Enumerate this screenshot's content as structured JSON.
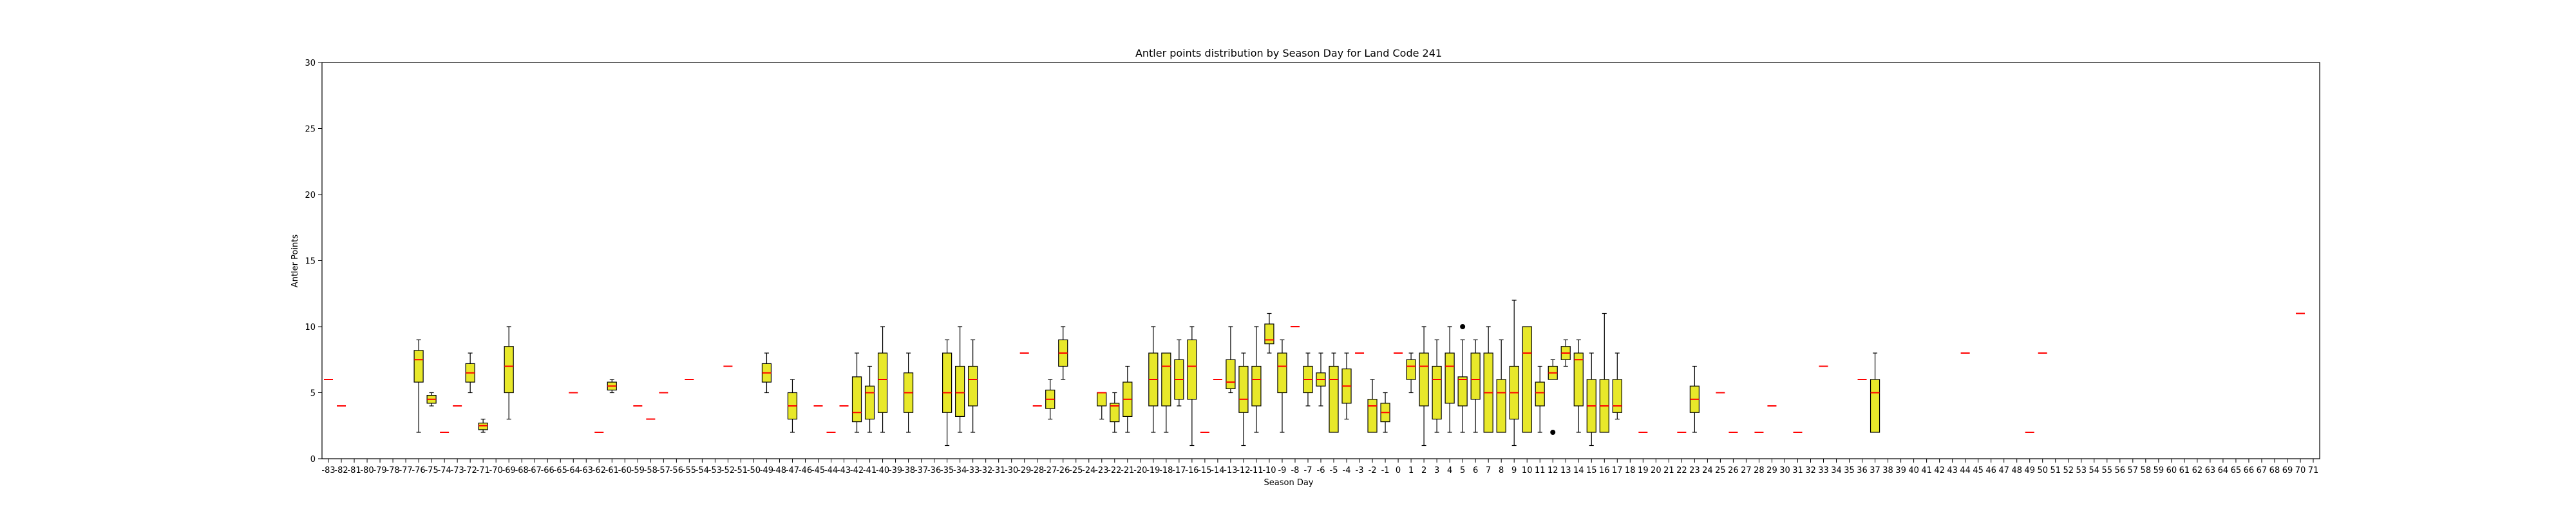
{
  "chart_data": {
    "type": "box",
    "title": "Antler points distribution by Season Day for Land Code 241",
    "xlabel": "Season Day",
    "ylabel": "Antler Points",
    "ylim": [
      0,
      30
    ],
    "yticks": [
      0,
      5,
      10,
      15,
      20,
      25,
      30
    ],
    "categories": [
      -83,
      -82,
      -81,
      -80,
      -79,
      -78,
      -77,
      -76,
      -75,
      -74,
      -73,
      -72,
      -71,
      -70,
      -69,
      -68,
      -67,
      -66,
      -65,
      -64,
      -63,
      -62,
      -61,
      -60,
      -59,
      -58,
      -57,
      -56,
      -55,
      -54,
      -53,
      -52,
      -51,
      -50,
      -49,
      -48,
      -47,
      -46,
      -45,
      -44,
      -43,
      -42,
      -41,
      -40,
      -39,
      -38,
      -37,
      -36,
      -35,
      -34,
      -33,
      -32,
      -31,
      -30,
      -29,
      -28,
      -27,
      -26,
      -25,
      -24,
      -23,
      -22,
      -21,
      -20,
      -19,
      -18,
      -17,
      -16,
      -15,
      -14,
      -13,
      -12,
      -11,
      -10,
      -9,
      -8,
      -7,
      -6,
      -5,
      -4,
      -3,
      -2,
      -1,
      0,
      1,
      2,
      3,
      4,
      5,
      6,
      7,
      8,
      9,
      10,
      11,
      12,
      13,
      14,
      15,
      16,
      17,
      18,
      19,
      20,
      21,
      22,
      23,
      24,
      25,
      26,
      27,
      28,
      29,
      30,
      31,
      32,
      33,
      34,
      35,
      36,
      37,
      38,
      39,
      40,
      41,
      42,
      43,
      44,
      45,
      46,
      47,
      48,
      49,
      50,
      51,
      52,
      53,
      54,
      55,
      56,
      57,
      58,
      59,
      60,
      61,
      62,
      63,
      64,
      65,
      66,
      67,
      68,
      69,
      70,
      71
    ],
    "box_fill": "#e8e82a",
    "median_color": "#ff0000",
    "boxes": [
      {
        "x": -83,
        "min": 6,
        "q1": 6,
        "median": 6,
        "q3": 6,
        "max": 6
      },
      {
        "x": -82,
        "min": 4,
        "q1": 4,
        "median": 4,
        "q3": 4,
        "max": 4
      },
      {
        "x": -76,
        "min": 2,
        "q1": 5.8,
        "median": 7.5,
        "q3": 8.2,
        "max": 9
      },
      {
        "x": -75,
        "min": 4,
        "q1": 4.2,
        "median": 4.5,
        "q3": 4.8,
        "max": 5
      },
      {
        "x": -74,
        "min": 2,
        "q1": 2,
        "median": 2,
        "q3": 2,
        "max": 2
      },
      {
        "x": -73,
        "min": 4,
        "q1": 4,
        "median": 4,
        "q3": 4,
        "max": 4
      },
      {
        "x": -72,
        "min": 5,
        "q1": 5.8,
        "median": 6.5,
        "q3": 7.2,
        "max": 8
      },
      {
        "x": -71,
        "min": 2,
        "q1": 2.2,
        "median": 2.5,
        "q3": 2.7,
        "max": 3
      },
      {
        "x": -69,
        "min": 3,
        "q1": 5,
        "median": 7,
        "q3": 8.5,
        "max": 10
      },
      {
        "x": -64,
        "min": 5,
        "q1": 5,
        "median": 5,
        "q3": 5,
        "max": 5
      },
      {
        "x": -62,
        "min": 2,
        "q1": 2,
        "median": 2,
        "q3": 2,
        "max": 2
      },
      {
        "x": -61,
        "min": 5,
        "q1": 5.2,
        "median": 5.5,
        "q3": 5.8,
        "max": 6
      },
      {
        "x": -59,
        "min": 4,
        "q1": 4,
        "median": 4,
        "q3": 4,
        "max": 4
      },
      {
        "x": -58,
        "min": 3,
        "q1": 3,
        "median": 3,
        "q3": 3,
        "max": 3
      },
      {
        "x": -57,
        "min": 5,
        "q1": 5,
        "median": 5,
        "q3": 5,
        "max": 5
      },
      {
        "x": -55,
        "min": 6,
        "q1": 6,
        "median": 6,
        "q3": 6,
        "max": 6
      },
      {
        "x": -52,
        "min": 7,
        "q1": 7,
        "median": 7,
        "q3": 7,
        "max": 7
      },
      {
        "x": -49,
        "min": 5,
        "q1": 5.8,
        "median": 6.5,
        "q3": 7.2,
        "max": 8
      },
      {
        "x": -47,
        "min": 2,
        "q1": 3,
        "median": 4,
        "q3": 5,
        "max": 6
      },
      {
        "x": -45,
        "min": 4,
        "q1": 4,
        "median": 4,
        "q3": 4,
        "max": 4
      },
      {
        "x": -44,
        "min": 2,
        "q1": 2,
        "median": 2,
        "q3": 2,
        "max": 2
      },
      {
        "x": -43,
        "min": 4,
        "q1": 4,
        "median": 4,
        "q3": 4,
        "max": 4
      },
      {
        "x": -42,
        "min": 2,
        "q1": 2.8,
        "median": 3.5,
        "q3": 6.2,
        "max": 8
      },
      {
        "x": -41,
        "min": 2,
        "q1": 3,
        "median": 5,
        "q3": 5.5,
        "max": 7
      },
      {
        "x": -40,
        "min": 2,
        "q1": 3.5,
        "median": 6,
        "q3": 8,
        "max": 10
      },
      {
        "x": -38,
        "min": 2,
        "q1": 3.5,
        "median": 5,
        "q3": 6.5,
        "max": 8
      },
      {
        "x": -35,
        "min": 1,
        "q1": 3.5,
        "median": 5,
        "q3": 8,
        "max": 9
      },
      {
        "x": -34,
        "min": 2,
        "q1": 3.2,
        "median": 5,
        "q3": 7,
        "max": 10
      },
      {
        "x": -33,
        "min": 2,
        "q1": 4,
        "median": 6,
        "q3": 7,
        "max": 9
      },
      {
        "x": -29,
        "min": 8,
        "q1": 8,
        "median": 8,
        "q3": 8,
        "max": 8
      },
      {
        "x": -28,
        "min": 4,
        "q1": 4,
        "median": 4,
        "q3": 4,
        "max": 4
      },
      {
        "x": -27,
        "min": 3,
        "q1": 3.8,
        "median": 4.5,
        "q3": 5.2,
        "max": 6
      },
      {
        "x": -26,
        "min": 6,
        "q1": 7,
        "median": 8,
        "q3": 9,
        "max": 10
      },
      {
        "x": -23,
        "min": 3,
        "q1": 4,
        "median": 5,
        "q3": 5,
        "max": 5
      },
      {
        "x": -22,
        "min": 2,
        "q1": 2.8,
        "median": 4,
        "q3": 4.2,
        "max": 5
      },
      {
        "x": -21,
        "min": 2,
        "q1": 3.2,
        "median": 4.5,
        "q3": 5.8,
        "max": 7
      },
      {
        "x": -19,
        "min": 2,
        "q1": 4,
        "median": 6,
        "q3": 8,
        "max": 10
      },
      {
        "x": -18,
        "min": 2,
        "q1": 4,
        "median": 7,
        "q3": 8,
        "max": 8
      },
      {
        "x": -17,
        "min": 4,
        "q1": 4.5,
        "median": 6,
        "q3": 7.5,
        "max": 9
      },
      {
        "x": -16,
        "min": 1,
        "q1": 4.5,
        "median": 7,
        "q3": 9,
        "max": 10
      },
      {
        "x": -15,
        "min": 2,
        "q1": 2,
        "median": 2,
        "q3": 2,
        "max": 2
      },
      {
        "x": -14,
        "min": 6,
        "q1": 6,
        "median": 6,
        "q3": 6,
        "max": 6
      },
      {
        "x": -13,
        "min": 5,
        "q1": 5.3,
        "median": 5.8,
        "q3": 7.5,
        "max": 10
      },
      {
        "x": -12,
        "min": 1,
        "q1": 3.5,
        "median": 4.5,
        "q3": 7,
        "max": 8
      },
      {
        "x": -11,
        "min": 2,
        "q1": 4,
        "median": 6,
        "q3": 7,
        "max": 10
      },
      {
        "x": -10,
        "min": 8,
        "q1": 8.7,
        "median": 9,
        "q3": 10.2,
        "max": 11
      },
      {
        "x": -9,
        "min": 2,
        "q1": 5,
        "median": 7,
        "q3": 8,
        "max": 9
      },
      {
        "x": -8,
        "min": 10,
        "q1": 10,
        "median": 10,
        "q3": 10,
        "max": 10
      },
      {
        "x": -7,
        "min": 4,
        "q1": 5,
        "median": 6,
        "q3": 7,
        "max": 8
      },
      {
        "x": -6,
        "min": 4,
        "q1": 5.5,
        "median": 6,
        "q3": 6.5,
        "max": 8
      },
      {
        "x": -5,
        "min": 2,
        "q1": 2,
        "median": 6,
        "q3": 7,
        "max": 8
      },
      {
        "x": -4,
        "min": 3,
        "q1": 4.2,
        "median": 5.5,
        "q3": 6.8,
        "max": 8
      },
      {
        "x": -3,
        "min": 8,
        "q1": 8,
        "median": 8,
        "q3": 8,
        "max": 8
      },
      {
        "x": -2,
        "min": 2,
        "q1": 2,
        "median": 4,
        "q3": 4.5,
        "max": 6
      },
      {
        "x": -1,
        "min": 2,
        "q1": 2.8,
        "median": 3.5,
        "q3": 4.2,
        "max": 5
      },
      {
        "x": 0,
        "min": 8,
        "q1": 8,
        "median": 8,
        "q3": 8,
        "max": 8
      },
      {
        "x": 1,
        "min": 5,
        "q1": 6,
        "median": 7,
        "q3": 7.5,
        "max": 8
      },
      {
        "x": 2,
        "min": 1,
        "q1": 4,
        "median": 7,
        "q3": 8,
        "max": 10
      },
      {
        "x": 3,
        "min": 2,
        "q1": 3,
        "median": 6,
        "q3": 7,
        "max": 9
      },
      {
        "x": 4,
        "min": 2,
        "q1": 4.2,
        "median": 7,
        "q3": 8,
        "max": 10
      },
      {
        "x": 5,
        "min": 2,
        "q1": 4,
        "median": 6,
        "q3": 6.2,
        "max": 9,
        "outliers": [
          10
        ]
      },
      {
        "x": 6,
        "min": 2,
        "q1": 4.5,
        "median": 6,
        "q3": 8,
        "max": 9
      },
      {
        "x": 7,
        "min": 2,
        "q1": 2,
        "median": 5,
        "q3": 8,
        "max": 10
      },
      {
        "x": 8,
        "min": 2,
        "q1": 2,
        "median": 5,
        "q3": 6,
        "max": 9
      },
      {
        "x": 9,
        "min": 1,
        "q1": 3,
        "median": 5,
        "q3": 7,
        "max": 12
      },
      {
        "x": 10,
        "min": 2,
        "q1": 2,
        "median": 8,
        "q3": 10,
        "max": 10
      },
      {
        "x": 11,
        "min": 2,
        "q1": 4,
        "median": 5,
        "q3": 5.8,
        "max": 7
      },
      {
        "x": 12,
        "min": 6,
        "q1": 6,
        "median": 6.5,
        "q3": 7,
        "max": 7.5,
        "outliers": [
          2
        ]
      },
      {
        "x": 13,
        "min": 7,
        "q1": 7.5,
        "median": 8,
        "q3": 8.5,
        "max": 9
      },
      {
        "x": 14,
        "min": 2,
        "q1": 4,
        "median": 7.5,
        "q3": 8,
        "max": 9
      },
      {
        "x": 15,
        "min": 1,
        "q1": 2,
        "median": 4,
        "q3": 6,
        "max": 8
      },
      {
        "x": 16,
        "min": 2,
        "q1": 2,
        "median": 4,
        "q3": 6,
        "max": 11
      },
      {
        "x": 17,
        "min": 3,
        "q1": 3.5,
        "median": 4,
        "q3": 6,
        "max": 8
      },
      {
        "x": 19,
        "min": 2,
        "q1": 2,
        "median": 2,
        "q3": 2,
        "max": 2
      },
      {
        "x": 22,
        "min": 2,
        "q1": 2,
        "median": 2,
        "q3": 2,
        "max": 2
      },
      {
        "x": 23,
        "min": 2,
        "q1": 3.5,
        "median": 4.5,
        "q3": 5.5,
        "max": 7
      },
      {
        "x": 25,
        "min": 5,
        "q1": 5,
        "median": 5,
        "q3": 5,
        "max": 5
      },
      {
        "x": 26,
        "min": 2,
        "q1": 2,
        "median": 2,
        "q3": 2,
        "max": 2
      },
      {
        "x": 28,
        "min": 2,
        "q1": 2,
        "median": 2,
        "q3": 2,
        "max": 2
      },
      {
        "x": 29,
        "min": 4,
        "q1": 4,
        "median": 4,
        "q3": 4,
        "max": 4
      },
      {
        "x": 31,
        "min": 2,
        "q1": 2,
        "median": 2,
        "q3": 2,
        "max": 2
      },
      {
        "x": 33,
        "min": 7,
        "q1": 7,
        "median": 7,
        "q3": 7,
        "max": 7
      },
      {
        "x": 36,
        "min": 6,
        "q1": 6,
        "median": 6,
        "q3": 6,
        "max": 6
      },
      {
        "x": 37,
        "min": 2,
        "q1": 2,
        "median": 5,
        "q3": 6,
        "max": 8
      },
      {
        "x": 44,
        "min": 8,
        "q1": 8,
        "median": 8,
        "q3": 8,
        "max": 8
      },
      {
        "x": 49,
        "min": 2,
        "q1": 2,
        "median": 2,
        "q3": 2,
        "max": 2
      },
      {
        "x": 50,
        "min": 8,
        "q1": 8,
        "median": 8,
        "q3": 8,
        "max": 8
      },
      {
        "x": 70,
        "min": 11,
        "q1": 11,
        "median": 11,
        "q3": 11,
        "max": 11
      }
    ]
  }
}
